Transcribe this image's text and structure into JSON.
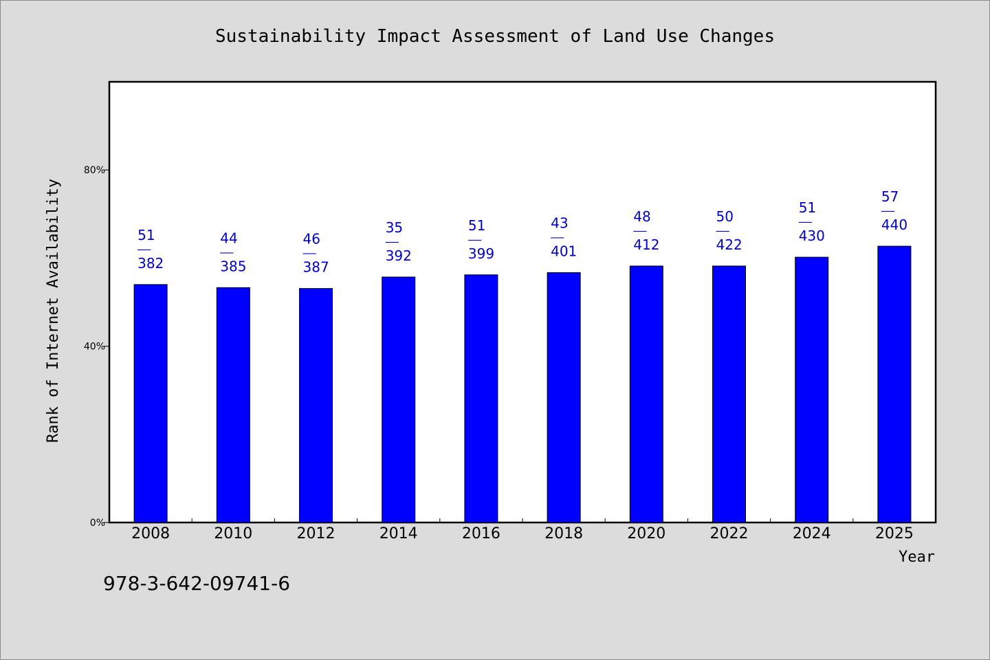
{
  "chart_data": {
    "type": "bar",
    "title": "Sustainability Impact Assessment of Land Use Changes",
    "xlabel": "Year",
    "ylabel": "Rank of Internet Availability",
    "categories": [
      "2008",
      "2010",
      "2012",
      "2014",
      "2016",
      "2018",
      "2020",
      "2022",
      "2024",
      "2025"
    ],
    "values": [
      54,
      53.3,
      53.1,
      55.7,
      56.2,
      56.7,
      58.2,
      58.2,
      60.2,
      62.7
    ],
    "labels": [
      {
        "top": "51",
        "bottom": "382"
      },
      {
        "top": "44",
        "bottom": "385"
      },
      {
        "top": "46",
        "bottom": "387"
      },
      {
        "top": "35",
        "bottom": "392"
      },
      {
        "top": "51",
        "bottom": "399"
      },
      {
        "top": "43",
        "bottom": "401"
      },
      {
        "top": "48",
        "bottom": "412"
      },
      {
        "top": "50",
        "bottom": "422"
      },
      {
        "top": "51",
        "bottom": "430"
      },
      {
        "top": "57",
        "bottom": "440"
      }
    ],
    "label_separator": "——",
    "yticks": [
      0,
      40,
      80
    ],
    "ytick_labels": [
      "0%",
      "40%",
      "80%"
    ],
    "ylim": [
      0,
      100
    ],
    "grid": false,
    "colors": {
      "bar": "#0000ff",
      "label": "#0000cc",
      "background": "#dcdcdc",
      "plot_bg": "#ffffff"
    }
  },
  "footer_text": "978-3-642-09741-6"
}
